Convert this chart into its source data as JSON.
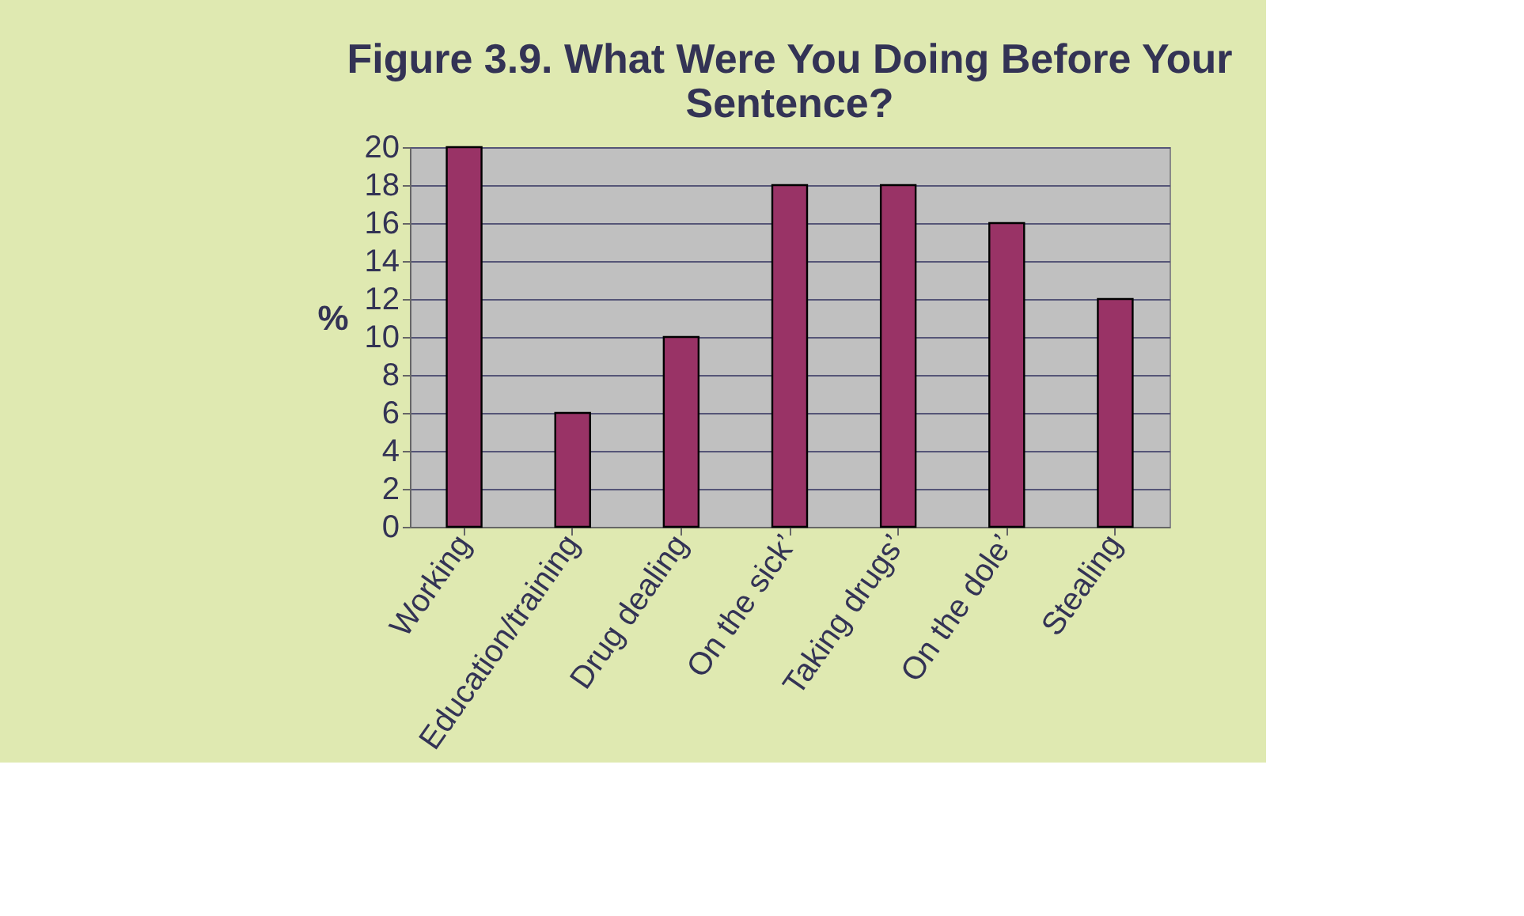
{
  "chart_data": {
    "type": "bar",
    "title": [
      "Figure 3.9. What Were You Doing Before Your",
      "Sentence?"
    ],
    "ylabel": "%",
    "categories": [
      "Working",
      "Education/training",
      "Drug dealing",
      "On the sick’",
      "Taking drugs’",
      "On the dole’",
      "Stealing"
    ],
    "values": [
      20,
      6,
      10,
      18,
      18,
      16,
      12
    ],
    "color": "#993366",
    "ylim": [
      0,
      20
    ],
    "yticks": [
      0,
      2,
      4,
      6,
      8,
      10,
      12,
      14,
      16,
      18,
      20
    ],
    "grid": "y"
  }
}
